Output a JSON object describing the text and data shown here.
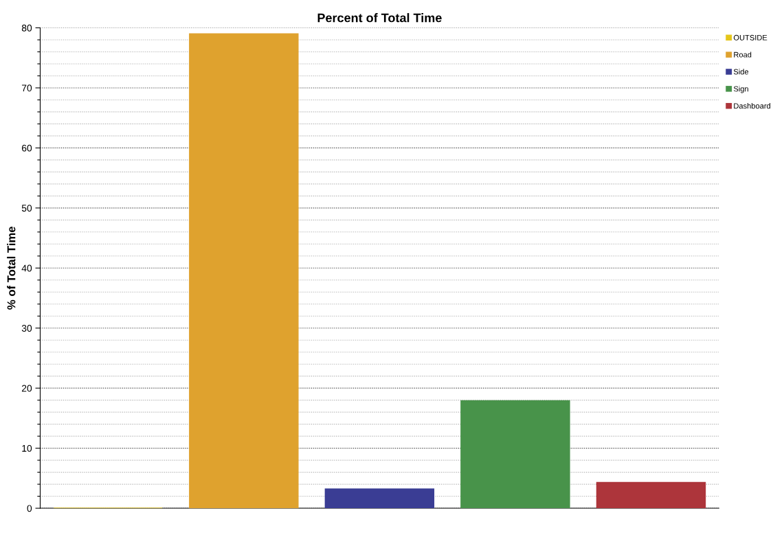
{
  "chart_data": {
    "type": "bar",
    "title": "Percent of Total Time",
    "ylabel": "% of Total Time",
    "categories": [
      null,
      null,
      null,
      null,
      null
    ],
    "series": [
      {
        "name": "OUTSIDE",
        "color": "#e5c61a",
        "values": [
          0,
          null,
          null,
          null,
          null
        ]
      },
      {
        "name": "Road",
        "color": "#dfa22e",
        "values": [
          null,
          79.0,
          null,
          null,
          null
        ]
      },
      {
        "name": "Side",
        "color": "#3a3d94",
        "values": [
          null,
          null,
          3.2,
          null,
          null
        ]
      },
      {
        "name": "Sign",
        "color": "#48934a",
        "values": [
          null,
          null,
          null,
          17.9,
          null
        ]
      },
      {
        "name": "Dashboard",
        "color": "#ad353b",
        "values": [
          null,
          null,
          null,
          null,
          4.3
        ]
      }
    ],
    "ylim": [
      0,
      80
    ],
    "yticks": [
      0,
      {
        "value": 2,
        "label": null
      },
      {
        "value": 4,
        "label": null
      },
      {
        "value": 6,
        "label": null
      },
      {
        "value": 8,
        "label": null
      },
      10,
      {
        "value": 12,
        "label": null
      },
      {
        "value": 14,
        "label": null
      },
      {
        "value": 16,
        "label": null
      },
      {
        "value": 18,
        "label": null
      },
      20,
      {
        "value": 22,
        "label": null
      },
      {
        "value": 24,
        "label": null
      },
      {
        "value": 26,
        "label": null
      },
      {
        "value": 28,
        "label": null
      },
      30,
      {
        "value": 32,
        "label": null
      },
      {
        "value": 34,
        "label": null
      },
      {
        "value": 36,
        "label": null
      },
      {
        "value": 38,
        "label": null
      },
      40,
      {
        "value": 42,
        "label": null
      },
      {
        "value": 44,
        "label": null
      },
      {
        "value": 46,
        "label": null
      },
      {
        "value": 48,
        "label": null
      },
      50,
      {
        "value": 52,
        "label": null
      },
      {
        "value": 54,
        "label": null
      },
      {
        "value": 56,
        "label": null
      },
      {
        "value": 58,
        "label": null
      },
      60,
      {
        "value": 62,
        "label": null
      },
      {
        "value": 64,
        "label": null
      },
      {
        "value": 66,
        "label": null
      },
      {
        "value": 68,
        "label": null
      },
      70,
      {
        "value": 72,
        "label": null
      },
      {
        "value": 74,
        "label": null
      },
      {
        "value": 76,
        "label": null
      },
      {
        "value": 78,
        "label": null
      },
      80
    ],
    "grid": "y",
    "legend": "top right"
  }
}
